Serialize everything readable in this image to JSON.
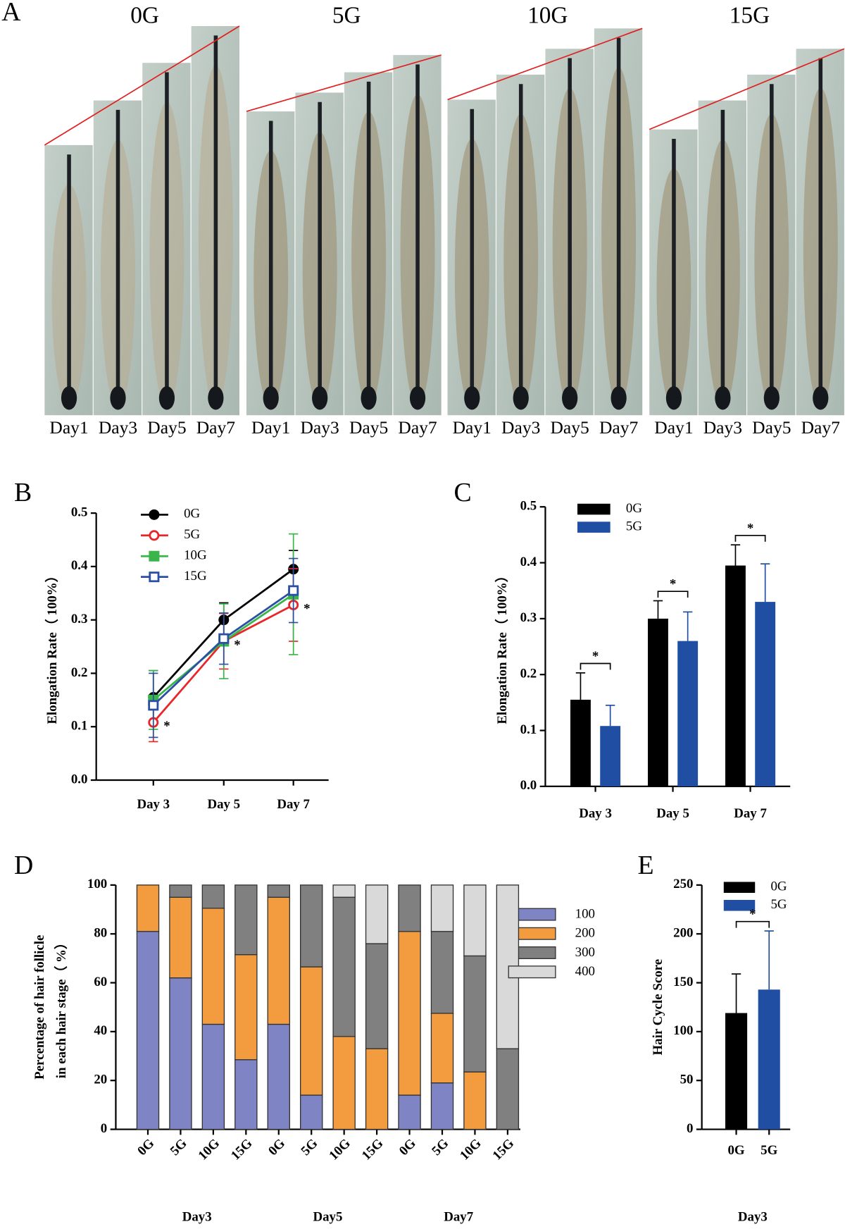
{
  "image_panel": {
    "panel": "A",
    "groups": [
      {
        "name": "0G",
        "days": [
          "Day1",
          "Day3",
          "Day5",
          "Day7"
        ]
      },
      {
        "name": "5G",
        "days": [
          "Day1",
          "Day3",
          "Day5",
          "Day7"
        ]
      },
      {
        "name": "10G",
        "days": [
          "Day1",
          "Day3",
          "Day5",
          "Day7"
        ]
      },
      {
        "name": "15G",
        "days": [
          "Day1",
          "Day3",
          "Day5",
          "Day7"
        ]
      }
    ]
  },
  "chart_data": [
    {
      "type": "line",
      "panel": "B",
      "ylabel": "Elongation Rate（ 100%）",
      "categories": [
        "Day 3",
        "Day 5",
        "Day 7"
      ],
      "series": [
        {
          "name": "0G",
          "color": "#000000",
          "marker": "circle",
          "filled": true,
          "values": [
            0.155,
            0.3,
            0.395
          ],
          "errors": [
            0.05,
            0.032,
            0.035
          ]
        },
        {
          "name": "5G",
          "color": "#e8262a",
          "marker": "circle",
          "filled": false,
          "values": [
            0.108,
            0.26,
            0.328
          ],
          "errors": [
            0.036,
            0.052,
            0.068
          ]
        },
        {
          "name": "10G",
          "color": "#39b54a",
          "marker": "square",
          "filled": true,
          "values": [
            0.15,
            0.26,
            0.348
          ],
          "errors": [
            0.055,
            0.07,
            0.113
          ]
        },
        {
          "name": "15G",
          "color": "#2b4fa3",
          "marker": "square",
          "filled": false,
          "values": [
            0.14,
            0.265,
            0.355
          ],
          "errors": [
            0.06,
            0.048,
            0.06
          ]
        }
      ],
      "significance": [
        "*",
        "*",
        "*"
      ],
      "ylim": [
        0,
        0.5
      ],
      "yticks": [
        {
          "value": 0,
          "label": "0.0"
        },
        0.1,
        0.2,
        0.3,
        0.4,
        0.5
      ],
      "legend": "upper left"
    },
    {
      "type": "bar",
      "panel": "C",
      "ylabel": "Elongation Rate（ 100%）",
      "categories": [
        "Day 3",
        "Day 5",
        "Day 7"
      ],
      "series": [
        {
          "name": "0G",
          "color": "#000000",
          "values": [
            0.155,
            0.3,
            0.395
          ],
          "errors": [
            0.048,
            0.032,
            0.037
          ]
        },
        {
          "name": "5G",
          "color": "#1f4ea3",
          "values": [
            0.108,
            0.26,
            0.33
          ],
          "errors": [
            0.037,
            0.052,
            0.068
          ]
        }
      ],
      "significance": [
        "*",
        "*",
        "*"
      ],
      "ylim": [
        0,
        0.5
      ],
      "yticks": [
        {
          "value": 0,
          "label": "0.0"
        },
        0.1,
        0.2,
        0.3,
        0.4,
        0.5
      ],
      "legend": "upper left"
    },
    {
      "type": "stacked_bar",
      "panel": "D",
      "ylabel": [
        "Percentage of hair follicle",
        "in each hair stage（ %）"
      ],
      "categories": [
        "0G",
        "5G",
        "10G",
        "15G",
        "0G",
        "5G",
        "10G",
        "15G",
        "0G",
        "5G",
        "10G",
        "15G"
      ],
      "group_labels": [
        "Day3",
        "Day5",
        "Day7"
      ],
      "series": [
        {
          "name": "100",
          "color": "#7f85c4",
          "values": [
            81,
            62,
            43,
            28.5,
            43,
            14,
            0,
            0,
            14,
            19,
            0,
            0
          ]
        },
        {
          "name": "200",
          "color": "#f39c3f",
          "values": [
            19,
            33,
            47.5,
            43,
            52,
            52.5,
            38,
            33,
            67,
            28.5,
            23.5,
            0
          ]
        },
        {
          "name": "300",
          "color": "#808080",
          "values": [
            0,
            5,
            9.5,
            28.5,
            5,
            33.5,
            57,
            43,
            19,
            33.5,
            47.5,
            33
          ]
        },
        {
          "name": "400",
          "color": "#d9d9d9",
          "values": [
            0,
            0,
            0,
            0,
            0,
            0,
            5,
            24,
            0,
            19,
            29,
            67
          ]
        }
      ],
      "ylim": [
        0,
        100
      ],
      "yticks": [
        0,
        20,
        40,
        60,
        80,
        100
      ],
      "legend": "right"
    },
    {
      "type": "bar",
      "panel": "E",
      "ylabel": "Hair Cycle Score",
      "categories": [
        "Day3"
      ],
      "series": [
        {
          "name": "0G",
          "color": "#000000",
          "values": [
            119
          ],
          "errors": [
            40
          ]
        },
        {
          "name": "5G",
          "color": "#1f4ea3",
          "values": [
            143
          ],
          "errors": [
            60
          ]
        }
      ],
      "significance": [
        "*"
      ],
      "ylim": [
        0,
        250
      ],
      "yticks": [
        0,
        50,
        100,
        150,
        200,
        250
      ],
      "legend": "upper left"
    }
  ]
}
